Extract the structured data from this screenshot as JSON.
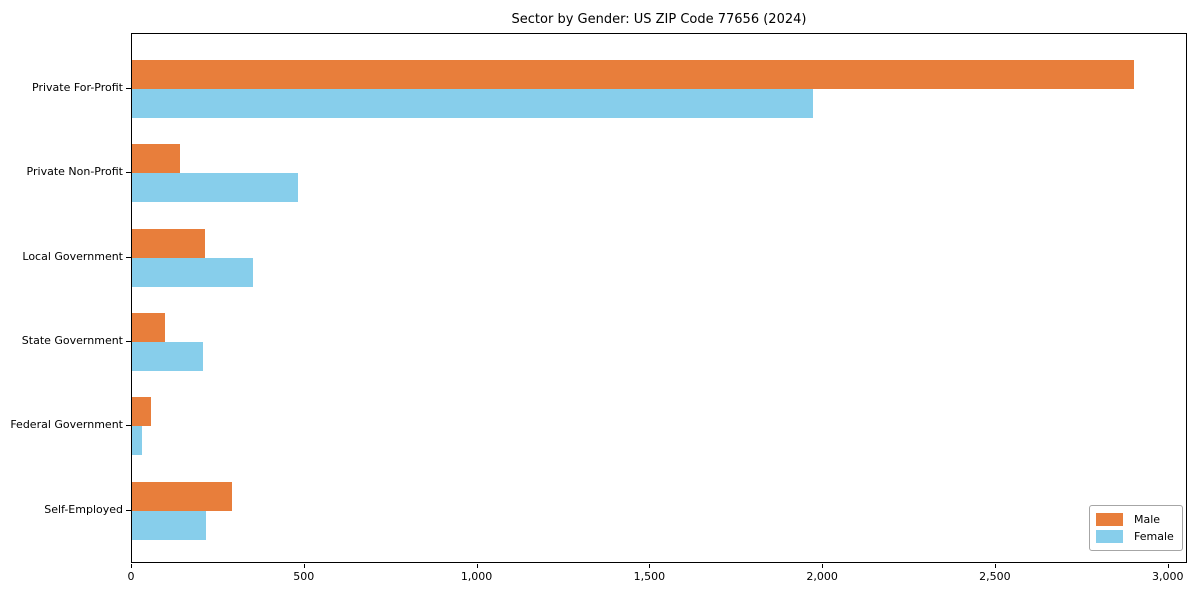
{
  "page": {
    "background_color": "#ffffff",
    "axis_color": "#000000"
  },
  "chart_data": {
    "type": "bar",
    "orientation": "horizontal",
    "title": "Sector by Gender: US ZIP Code 77656 (2024)",
    "xlabel": "",
    "ylabel": "",
    "categories": [
      "Private For-Profit",
      "Private Non-Profit",
      "Local Government",
      "State Government",
      "Federal Government",
      "Self-Employed"
    ],
    "series": [
      {
        "name": "Male",
        "color": "#e87e3b",
        "values": [
          2900,
          140,
          210,
          95,
          55,
          290
        ]
      },
      {
        "name": "Female",
        "color": "#87ceeb",
        "values": [
          1970,
          480,
          350,
          205,
          30,
          215
        ]
      }
    ],
    "xlim": [
      0,
      3050
    ],
    "xticks": [
      0,
      500,
      1000,
      1500,
      2000,
      2500,
      3000
    ],
    "grid": false,
    "legend_position": "lower right"
  }
}
